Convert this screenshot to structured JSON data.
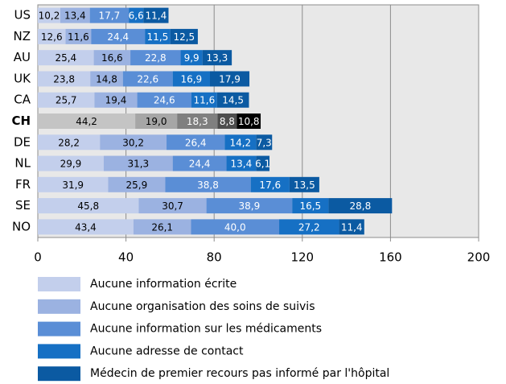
{
  "chart_data": {
    "type": "stacked_barh",
    "categories": [
      "US",
      "NZ",
      "AU",
      "UK",
      "CA",
      "CH",
      "DE",
      "NL",
      "FR",
      "SE",
      "NO"
    ],
    "highlight": "CH",
    "series": [
      {
        "name": "Aucune information écrite",
        "color": "#c3cfec",
        "highlight_color": "#c4c4c4",
        "label_color": "#000000",
        "highlight_label_color": "#000000",
        "values": [
          10.2,
          12.6,
          25.4,
          23.8,
          25.7,
          44.2,
          28.2,
          29.9,
          31.9,
          45.8,
          43.4
        ],
        "value_labels": [
          "10,2",
          "12,6",
          "25,4",
          "23,8",
          "25,7",
          "44,2",
          "28,2",
          "29,9",
          "31,9",
          "45,8",
          "43,4"
        ]
      },
      {
        "name": "Aucune organisation des soins de suivis",
        "color": "#9bb2e1",
        "highlight_color": "#a6a6a6",
        "label_color": "#000000",
        "highlight_label_color": "#000000",
        "values": [
          13.4,
          11.6,
          16.6,
          14.8,
          19.4,
          19.0,
          30.2,
          31.3,
          25.9,
          30.7,
          26.1
        ],
        "value_labels": [
          "13,4",
          "11,6",
          "16,6",
          "14,8",
          "19,4",
          "19,0",
          "30,2",
          "31,3",
          "25,9",
          "30,7",
          "26,1"
        ]
      },
      {
        "name": "Aucune information sur les médicaments",
        "color": "#5a8ed6",
        "highlight_color": "#7f7f7f",
        "label_color": "#ffffff",
        "highlight_label_color": "#ffffff",
        "values": [
          17.7,
          24.4,
          22.8,
          22.6,
          24.6,
          18.3,
          26.4,
          24.4,
          38.8,
          38.9,
          40.0
        ],
        "value_labels": [
          "17,7",
          "24,4",
          "22,8",
          "22,6",
          "24,6",
          "18,3",
          "26,4",
          "24,4",
          "38,8",
          "38,9",
          "40,0"
        ]
      },
      {
        "name": "Aucune adresse de contact",
        "color": "#1670c4",
        "highlight_color": "#4d4d4d",
        "label_color": "#ffffff",
        "highlight_label_color": "#ffffff",
        "values": [
          6.6,
          11.5,
          9.9,
          16.9,
          11.6,
          8.8,
          14.2,
          13.4,
          17.6,
          16.5,
          27.2
        ],
        "value_labels": [
          "6,6",
          "11,5",
          "9,9",
          "16,9",
          "11,6",
          "8,8",
          "14,2",
          "13,4",
          "17,6",
          "16,5",
          "27,2"
        ]
      },
      {
        "name": "Médecin de premier recours pas informé par l'hôpital",
        "color": "#0b5aa2",
        "highlight_color": "#000000",
        "label_color": "#ffffff",
        "highlight_label_color": "#ffffff",
        "values": [
          11.4,
          12.5,
          13.3,
          17.9,
          14.5,
          10.8,
          7.3,
          6.1,
          13.5,
          28.8,
          11.4
        ],
        "value_labels": [
          "11,4",
          "12,5",
          "13,3",
          "17,9",
          "14,5",
          "10,8",
          "7,3",
          "6,1",
          "13,5",
          "28,8",
          "11,4"
        ]
      }
    ],
    "xlim": [
      0,
      200
    ],
    "xticks": [
      0,
      40,
      80,
      120,
      160,
      200
    ],
    "grid": true
  }
}
